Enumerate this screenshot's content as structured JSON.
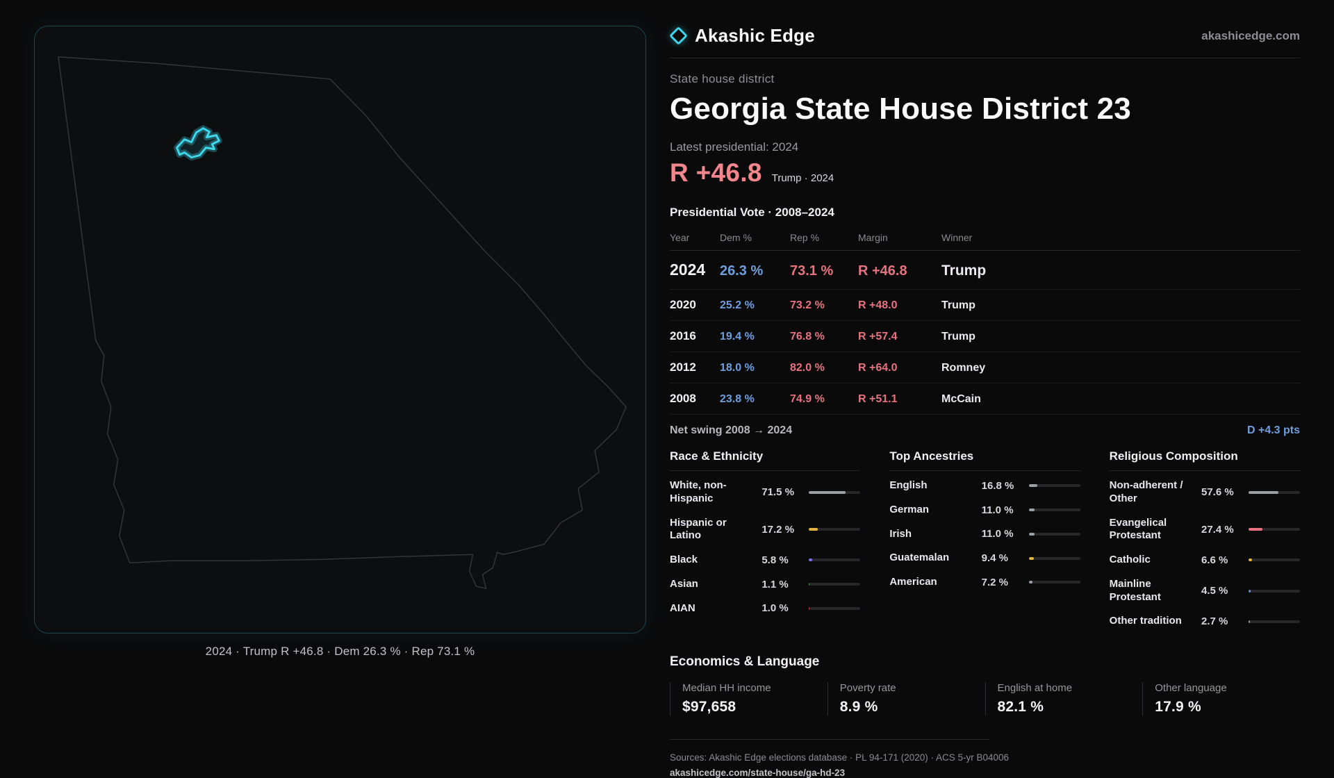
{
  "colors": {
    "background": "#0a0a0b",
    "accent_cyan": "#3fd6ea",
    "dem_blue": "#6f9fdc",
    "rep_red": "#e8737e",
    "headline_red": "#f2868c"
  },
  "header": {
    "brand": "Akashic Edge",
    "site": "akashicedge.com",
    "logo_icon": "diamond-outline-icon"
  },
  "district": {
    "eyebrow": "State house district",
    "title": "Georgia State House District 23",
    "latest_label": "Latest presidential: 2024",
    "headline_margin": "R +46.8",
    "headline_note": "Trump · 2024"
  },
  "map": {
    "caption": "2024 · Trump R +46.8 · Dem 26.3 % · Rep 73.1 %"
  },
  "vote_table": {
    "title": "Presidential Vote · 2008–2024",
    "headers": [
      "Year",
      "Dem %",
      "Rep %",
      "Margin",
      "Winner"
    ],
    "rows": [
      {
        "year": "2024",
        "dem": "26.3 %",
        "rep": "73.1 %",
        "margin": "R +46.8",
        "winner": "Trump"
      },
      {
        "year": "2020",
        "dem": "25.2 %",
        "rep": "73.2 %",
        "margin": "R +48.0",
        "winner": "Trump"
      },
      {
        "year": "2016",
        "dem": "19.4 %",
        "rep": "76.8 %",
        "margin": "R +57.4",
        "winner": "Trump"
      },
      {
        "year": "2012",
        "dem": "18.0 %",
        "rep": "82.0 %",
        "margin": "R +64.0",
        "winner": "Romney"
      },
      {
        "year": "2008",
        "dem": "23.8 %",
        "rep": "74.9 %",
        "margin": "R +51.1",
        "winner": "McCain"
      }
    ],
    "net_swing_label": "Net swing 2008 → 2024",
    "net_swing_value": "D +4.3 pts"
  },
  "demographics": {
    "race": {
      "title": "Race & Ethnicity",
      "items": [
        {
          "label": "White, non-Hispanic",
          "value": "71.5 %",
          "pct": 71.5,
          "color": "#9aa0a6"
        },
        {
          "label": "Hispanic or Latino",
          "value": "17.2 %",
          "pct": 17.2,
          "color": "#e3b341"
        },
        {
          "label": "Black",
          "value": "5.8 %",
          "pct": 5.8,
          "color": "#7c6ff0"
        },
        {
          "label": "Asian",
          "value": "1.1 %",
          "pct": 1.1,
          "color": "#57ab5a"
        },
        {
          "label": "AIAN",
          "value": "1.0 %",
          "pct": 1.0,
          "color": "#e5534b"
        }
      ]
    },
    "ancestries": {
      "title": "Top Ancestries",
      "items": [
        {
          "label": "English",
          "value": "16.8 %",
          "pct": 16.8,
          "color": "#9aa0a6"
        },
        {
          "label": "German",
          "value": "11.0 %",
          "pct": 11.0,
          "color": "#9aa0a6"
        },
        {
          "label": "Irish",
          "value": "11.0 %",
          "pct": 11.0,
          "color": "#9aa0a6"
        },
        {
          "label": "Guatemalan",
          "value": "9.4 %",
          "pct": 9.4,
          "color": "#e3b341"
        },
        {
          "label": "American",
          "value": "7.2 %",
          "pct": 7.2,
          "color": "#9aa0a6"
        }
      ]
    },
    "religion": {
      "title": "Religious Composition",
      "items": [
        {
          "label": "Non-adherent / Other",
          "value": "57.6 %",
          "pct": 57.6,
          "color": "#9aa0a6"
        },
        {
          "label": "Evangelical Protestant",
          "value": "27.4 %",
          "pct": 27.4,
          "color": "#e8737e"
        },
        {
          "label": "Catholic",
          "value": "6.6 %",
          "pct": 6.6,
          "color": "#e3b341"
        },
        {
          "label": "Mainline Protestant",
          "value": "4.5 %",
          "pct": 4.5,
          "color": "#5b8fd9"
        },
        {
          "label": "Other tradition",
          "value": "2.7 %",
          "pct": 2.7,
          "color": "#9aa0a6"
        }
      ]
    }
  },
  "economics": {
    "title": "Economics & Language",
    "stats": [
      {
        "label": "Median HH income",
        "value": "$97,658"
      },
      {
        "label": "Poverty rate",
        "value": "8.9 %"
      },
      {
        "label": "English at home",
        "value": "82.1 %"
      },
      {
        "label": "Other language",
        "value": "17.9 %"
      }
    ]
  },
  "footer": {
    "sources": "Sources: Akashic Edge elections database · PL 94-171 (2020) · ACS 5-yr B04006",
    "permalink": "akashicedge.com/state-house/ga-hd-23"
  },
  "chart_data": [
    {
      "type": "table",
      "title": "Presidential Vote · 2008–2024",
      "columns": [
        "Year",
        "Dem %",
        "Rep %",
        "Margin",
        "Winner"
      ],
      "rows": [
        [
          2024,
          26.3,
          73.1,
          "R +46.8",
          "Trump"
        ],
        [
          2020,
          25.2,
          73.2,
          "R +48.0",
          "Trump"
        ],
        [
          2016,
          19.4,
          76.8,
          "R +57.4",
          "Trump"
        ],
        [
          2012,
          18.0,
          82.0,
          "R +64.0",
          "Romney"
        ],
        [
          2008,
          23.8,
          74.9,
          "R +51.1",
          "McCain"
        ]
      ],
      "annotations": [
        "Net swing 2008 → 2024: D +4.3 pts",
        "Latest presidential 2024: R +46.8 (Trump)"
      ]
    },
    {
      "type": "bar",
      "title": "Race & Ethnicity",
      "categories": [
        "White, non-Hispanic",
        "Hispanic or Latino",
        "Black",
        "Asian",
        "AIAN"
      ],
      "values": [
        71.5,
        17.2,
        5.8,
        1.1,
        1.0
      ],
      "unit": "%",
      "xlim": [
        0,
        100
      ],
      "orientation": "horizontal",
      "grid": false
    },
    {
      "type": "bar",
      "title": "Top Ancestries",
      "categories": [
        "English",
        "German",
        "Irish",
        "Guatemalan",
        "American"
      ],
      "values": [
        16.8,
        11.0,
        11.0,
        9.4,
        7.2
      ],
      "unit": "%",
      "xlim": [
        0,
        100
      ],
      "orientation": "horizontal",
      "grid": false
    },
    {
      "type": "bar",
      "title": "Religious Composition",
      "categories": [
        "Non-adherent / Other",
        "Evangelical Protestant",
        "Catholic",
        "Mainline Protestant",
        "Other tradition"
      ],
      "values": [
        57.6,
        27.4,
        6.6,
        4.5,
        2.7
      ],
      "unit": "%",
      "xlim": [
        0,
        100
      ],
      "orientation": "horizontal",
      "grid": false
    },
    {
      "type": "table",
      "title": "Economics & Language",
      "columns": [
        "Median HH income",
        "Poverty rate",
        "English at home",
        "Other language"
      ],
      "rows": [
        [
          "$97,658",
          "8.9 %",
          "82.1 %",
          "17.9 %"
        ]
      ]
    }
  ]
}
